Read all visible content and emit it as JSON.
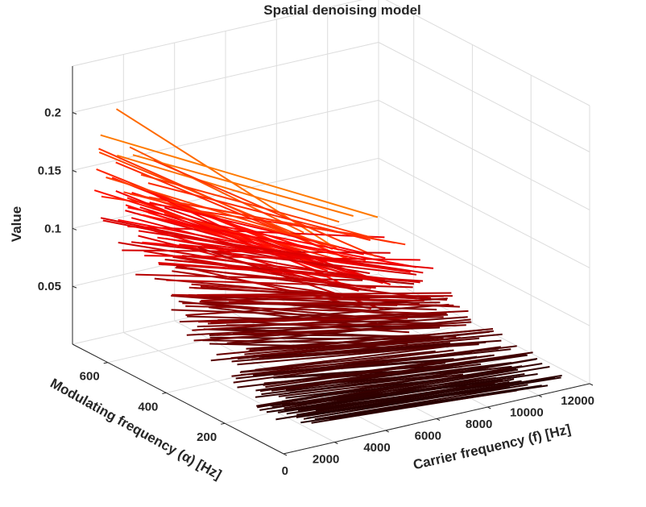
{
  "chart_data": {
    "type": "line",
    "title": "Spatial denoising model",
    "xlabel": "Carrier frequency (f) [Hz]",
    "ylabel": "Modulating frequency (α) [Hz]",
    "zlabel": "Value",
    "xlim": [
      0,
      12000
    ],
    "ylim": [
      0,
      720
    ],
    "zlim": [
      0,
      0.24
    ],
    "x_ticks": [
      "0",
      "2000",
      "4000",
      "6000",
      "8000",
      "10000",
      "12000"
    ],
    "y_ticks": [
      "200",
      "400",
      "600"
    ],
    "z_ticks": [
      "0.05",
      "0.1",
      "0.15",
      "0.2"
    ],
    "grid": true,
    "colormap": "hot",
    "colors": {
      "low": "#000000",
      "mid": "#cc0000",
      "orange": "#ff8c00",
      "high": "#ffff33"
    },
    "series_note_free": true,
    "alpha_count": 60,
    "alpha_max": 700,
    "f_max": 11500
  }
}
